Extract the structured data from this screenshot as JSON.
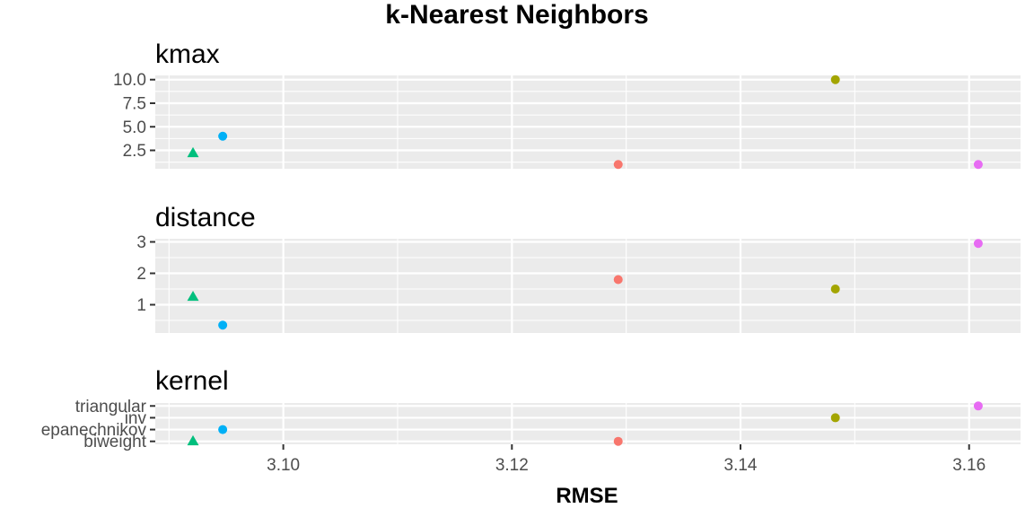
{
  "chart_data": {
    "type": "scatter",
    "title": "k-Nearest Neighbors",
    "xlabel": "RMSE",
    "x_ticks": [
      3.1,
      3.12,
      3.14,
      3.16
    ],
    "xlim": [
      3.0888,
      3.1645
    ],
    "grid": true,
    "colors": [
      "#F8766D",
      "#A3A500",
      "#00BF7D",
      "#00B0F6",
      "#E76BF3"
    ],
    "points_rmse": [
      3.1293,
      3.1483,
      3.0921,
      3.0947,
      3.1608
    ],
    "shapes": [
      "circle",
      "circle",
      "triangle",
      "circle",
      "circle"
    ],
    "panels": [
      {
        "name": "kmax",
        "scale": "continuous",
        "y_ticks": [
          "10.0",
          "7.5",
          "5.0",
          "2.5"
        ],
        "y_tick_values": [
          10.0,
          7.5,
          5.0,
          2.5
        ],
        "ylim": [
          0.55,
          10.45
        ],
        "y": [
          1.0,
          10.0,
          2.2,
          4.0,
          1.0
        ]
      },
      {
        "name": "distance",
        "scale": "continuous",
        "y_ticks": [
          "3",
          "2",
          "1"
        ],
        "y_tick_values": [
          3,
          2,
          1
        ],
        "ylim": [
          0.1,
          3.1
        ],
        "y": [
          1.8,
          1.5,
          1.25,
          0.35,
          2.95
        ]
      },
      {
        "name": "kernel",
        "scale": "discrete",
        "y_ticks": [
          "triangular",
          "inv",
          "epanechnikov",
          "biweight"
        ],
        "y_tick_values": [
          4,
          3,
          2,
          1
        ],
        "ylim": [
          0.75,
          4.25
        ],
        "y": [
          1,
          3,
          1,
          2,
          4
        ]
      }
    ]
  }
}
